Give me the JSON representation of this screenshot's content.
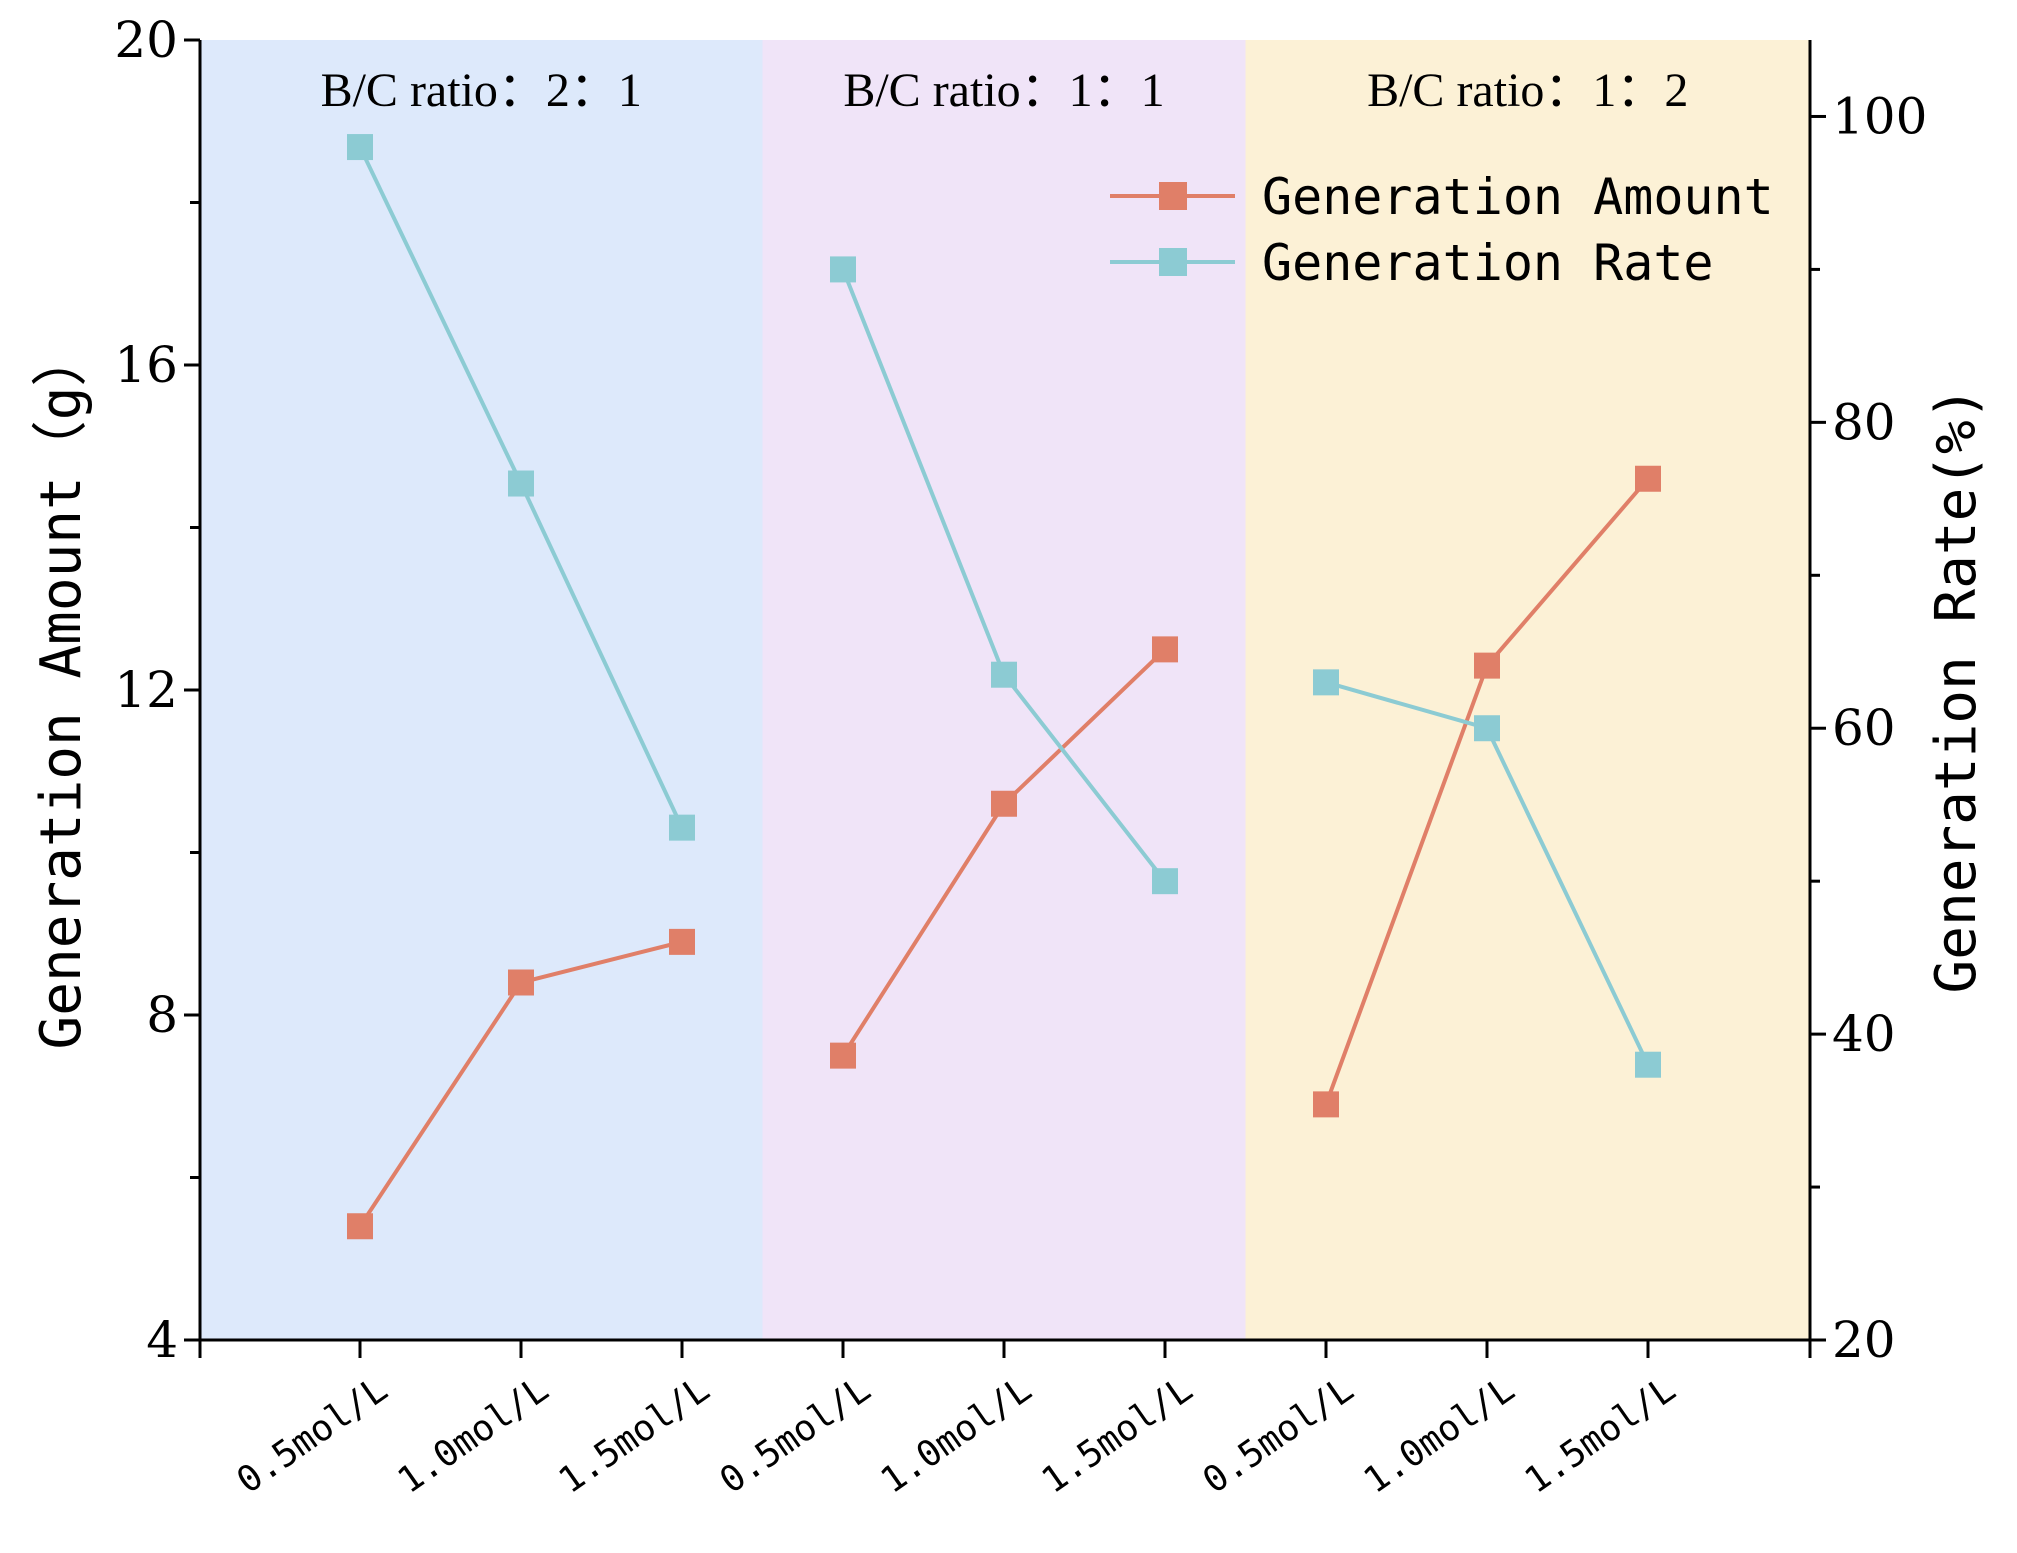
{
  "chart_data": {
    "type": "line",
    "categories": [
      "0.5mol/L",
      "1.0mol/L",
      "1.5mol/L",
      "0.5mol/L",
      "1.0mol/L",
      "1.5mol/L",
      "0.5mol/L",
      "1.0mol/L",
      "1.5mol/L"
    ],
    "groups": [
      {
        "label": "B/C ratio：2：1",
        "color": "#dde9fb",
        "start": 0,
        "end": 2
      },
      {
        "label": "B/C ratio：1：1",
        "color": "#f0e4f8",
        "start": 3,
        "end": 5
      },
      {
        "label": "B/C ratio：1：2",
        "color": "#fcf1d6",
        "start": 6,
        "end": 8
      }
    ],
    "series": [
      {
        "name": "Generation Amount",
        "axis": "left",
        "color": "#e07f68",
        "values": [
          5.4,
          8.4,
          8.9,
          7.5,
          10.6,
          12.5,
          6.9,
          12.3,
          14.6
        ]
      },
      {
        "name": "Generation Rate",
        "axis": "right",
        "color": "#8ccbd3",
        "values": [
          98,
          76,
          53.5,
          90,
          63.5,
          50,
          63,
          60,
          38
        ]
      }
    ],
    "left_axis": {
      "label": "Generation Amount（g）",
      "ylim": [
        4,
        20
      ],
      "ticks": [
        4,
        8,
        12,
        16,
        20
      ],
      "minor_step": 2
    },
    "right_axis": {
      "label": "Generation Rate(%)",
      "ylim": [
        20,
        105
      ],
      "ticks": [
        20,
        40,
        60,
        80,
        100
      ],
      "minor_step": 10
    },
    "xlabel": "",
    "legend_position": "top-right"
  }
}
